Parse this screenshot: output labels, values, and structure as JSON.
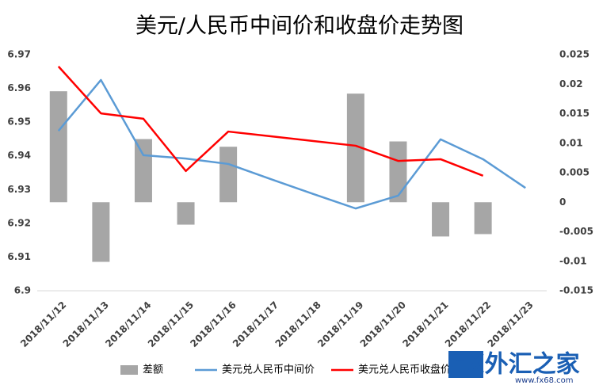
{
  "chart_data": {
    "type": "bar-line",
    "title": "美元/人民币中间价和收盘价走势图",
    "categories": [
      "2018/11/12",
      "2018/11/13",
      "2018/11/14",
      "2018/11/15",
      "2018/11/16",
      "2018/11/17",
      "2018/11/18",
      "2018/11/19",
      "2018/11/20",
      "2018/11/21",
      "2018/11/22",
      "2018/11/23"
    ],
    "series": [
      {
        "name": "差额",
        "type": "bar",
        "axis": "y2",
        "color": "#a6a6a6",
        "values": [
          0.0188,
          -0.0101,
          0.0107,
          -0.0038,
          0.0094,
          null,
          null,
          0.0184,
          0.0103,
          -0.0058,
          -0.0054,
          null
        ]
      },
      {
        "name": "美元兑人民币中间价",
        "type": "line",
        "color": "#5b9bd5",
        "values": [
          6.9474,
          6.9625,
          6.9402,
          6.9392,
          6.9376,
          6.9331,
          6.9287,
          6.9244,
          6.9282,
          6.9449,
          6.939,
          6.9305
        ]
      },
      {
        "name": "美元兑人民币收盘价",
        "type": "line",
        "color": "#ff0000",
        "values": [
          6.9665,
          6.9526,
          6.951,
          6.9355,
          6.9472,
          6.9458,
          6.9444,
          6.943,
          6.9385,
          6.939,
          6.9341,
          null
        ]
      }
    ],
    "ylim": [
      6.9,
      6.97
    ],
    "yticks": [
      6.9,
      6.91,
      6.92,
      6.93,
      6.94,
      6.95,
      6.96,
      6.97
    ],
    "y2lim": [
      -0.015,
      0.025
    ],
    "y2ticks": [
      -0.015,
      -0.01,
      -0.005,
      0,
      0.005,
      0.01,
      0.015,
      0.02,
      0.025
    ],
    "grid": false,
    "legend": "bottom",
    "watermark": {
      "brand": "FX外汇之家",
      "url": "www.fx68.com"
    }
  }
}
